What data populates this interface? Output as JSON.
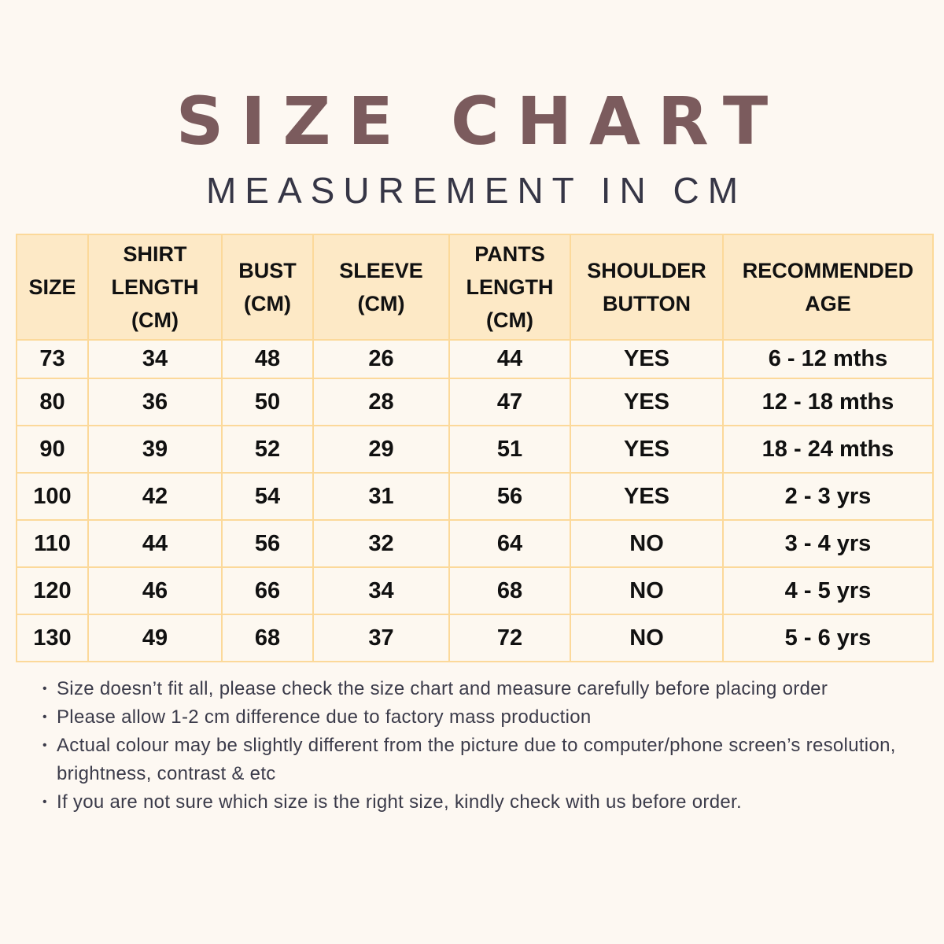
{
  "header": {
    "title": "SIZE CHART",
    "subtitle": "MEASUREMENT IN CM"
  },
  "table": {
    "columns": [
      [
        "SIZE"
      ],
      [
        "SHIRT",
        "LENGTH",
        "(CM)"
      ],
      [
        "BUST",
        "(CM)"
      ],
      [
        "SLEEVE",
        "(CM)"
      ],
      [
        "PANTS",
        "LENGTH",
        "(CM)"
      ],
      [
        "SHOULDER",
        "BUTTON"
      ],
      [
        "RECOMMENDED",
        "AGE"
      ]
    ],
    "rows": [
      [
        "73",
        "34",
        "48",
        "26",
        "44",
        "YES",
        "6 - 12 mths"
      ],
      [
        "80",
        "36",
        "50",
        "28",
        "47",
        "YES",
        "12 - 18 mths"
      ],
      [
        "90",
        "39",
        "52",
        "29",
        "51",
        "YES",
        "18 - 24 mths"
      ],
      [
        "100",
        "42",
        "54",
        "31",
        "56",
        "YES",
        "2 - 3 yrs"
      ],
      [
        "110",
        "44",
        "56",
        "32",
        "64",
        "NO",
        "3 - 4 yrs"
      ],
      [
        "120",
        "46",
        "66",
        "34",
        "68",
        "NO",
        "4 - 5 yrs"
      ],
      [
        "130",
        "49",
        "68",
        "37",
        "72",
        "NO",
        "5 - 6 yrs"
      ]
    ]
  },
  "notes": [
    "Size doesn’t fit all, please check the size chart and measure carefully before placing order",
    "Please allow 1-2 cm difference due to factory mass production",
    "Actual colour may be slightly different from the picture due to computer/phone screen’s resolution, brightness, contrast & etc",
    "If you are not sure which size is the right size, kindly check with us before order."
  ]
}
